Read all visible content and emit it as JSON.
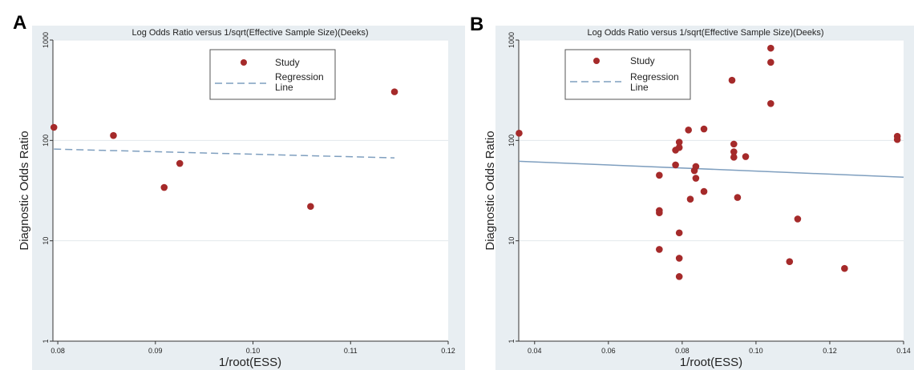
{
  "colors": {
    "marker": "#a52a2a",
    "regression": "#7f9fbf",
    "outer_bg": "#e8eef2",
    "plot_bg": "#ffffff",
    "grid": "#e3e8ec"
  },
  "chart_data": [
    {
      "panel_label": "A",
      "type": "scatter",
      "title": "Log Odds Ratio versus 1/sqrt(Effective Sample Size)(Deeks)",
      "xlabel": "1/root(ESS)",
      "ylabel": "Diagnostic Odds Ratio",
      "xlim": [
        0.0795,
        0.12
      ],
      "ylim": [
        1,
        1000
      ],
      "yscale": "log",
      "xticks": [
        0.08,
        0.09,
        0.1,
        0.11,
        0.12
      ],
      "xtick_labels": [
        "0.08",
        "0.09",
        "0.10",
        "0.11",
        "0.12"
      ],
      "yticks": [
        1,
        10,
        100,
        1000
      ],
      "ytick_labels": [
        "1",
        "10",
        "100",
        "1000"
      ],
      "grid": true,
      "legend": {
        "placement": "top-center",
        "items": [
          "Study",
          "Regression",
          "Line"
        ]
      },
      "points": [
        {
          "x": 0.0796,
          "y": 135
        },
        {
          "x": 0.0857,
          "y": 112
        },
        {
          "x": 0.0909,
          "y": 34
        },
        {
          "x": 0.0925,
          "y": 59
        },
        {
          "x": 0.1059,
          "y": 22
        },
        {
          "x": 0.1145,
          "y": 305
        }
      ],
      "regression": {
        "x": [
          0.0796,
          0.1145
        ],
        "y": [
          82,
          67
        ]
      }
    },
    {
      "panel_label": "B",
      "type": "scatter",
      "title": "Log Odds Ratio versus 1/sqrt(Effective Sample Size)(Deeks)",
      "xlabel": "1/root(ESS)",
      "ylabel": "Diagnostic Odds Ratio",
      "xlim": [
        0.0357,
        0.14
      ],
      "ylim": [
        1,
        1000
      ],
      "yscale": "log",
      "xticks": [
        0.04,
        0.06,
        0.08,
        0.1,
        0.12,
        0.14
      ],
      "xtick_labels": [
        "0.04",
        "0.06",
        "0.08",
        "0.10",
        "0.12",
        "0.14"
      ],
      "yticks": [
        1,
        10,
        100,
        1000
      ],
      "ytick_labels": [
        "1",
        "10",
        "100",
        "1000"
      ],
      "grid": true,
      "legend": {
        "placement": "top-left",
        "items": [
          "Study",
          "Regression",
          "Line"
        ]
      },
      "points": [
        {
          "x": 0.0358,
          "y": 118
        },
        {
          "x": 0.0738,
          "y": 45
        },
        {
          "x": 0.0738,
          "y": 20
        },
        {
          "x": 0.0738,
          "y": 19
        },
        {
          "x": 0.0738,
          "y": 8.2
        },
        {
          "x": 0.0782,
          "y": 57
        },
        {
          "x": 0.0782,
          "y": 80
        },
        {
          "x": 0.0792,
          "y": 85
        },
        {
          "x": 0.0792,
          "y": 96
        },
        {
          "x": 0.0792,
          "y": 12
        },
        {
          "x": 0.0792,
          "y": 6.7
        },
        {
          "x": 0.0792,
          "y": 4.4
        },
        {
          "x": 0.0817,
          "y": 127
        },
        {
          "x": 0.0822,
          "y": 26
        },
        {
          "x": 0.0833,
          "y": 50
        },
        {
          "x": 0.0837,
          "y": 55
        },
        {
          "x": 0.0837,
          "y": 42
        },
        {
          "x": 0.0859,
          "y": 130
        },
        {
          "x": 0.0859,
          "y": 31
        },
        {
          "x": 0.0935,
          "y": 398
        },
        {
          "x": 0.094,
          "y": 92
        },
        {
          "x": 0.094,
          "y": 77
        },
        {
          "x": 0.094,
          "y": 68
        },
        {
          "x": 0.095,
          "y": 27
        },
        {
          "x": 0.0972,
          "y": 69
        },
        {
          "x": 0.104,
          "y": 830
        },
        {
          "x": 0.104,
          "y": 600
        },
        {
          "x": 0.104,
          "y": 233
        },
        {
          "x": 0.1091,
          "y": 6.2
        },
        {
          "x": 0.1113,
          "y": 16.5
        },
        {
          "x": 0.124,
          "y": 5.3
        },
        {
          "x": 0.1383,
          "y": 110
        },
        {
          "x": 0.1383,
          "y": 102
        }
      ],
      "regression": {
        "x": [
          0.0357,
          0.14
        ],
        "y": [
          62,
          43
        ]
      }
    }
  ]
}
